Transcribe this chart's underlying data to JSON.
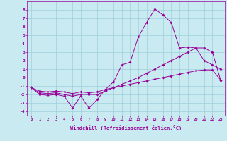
{
  "xlabel": "Windchill (Refroidissement éolien,°C)",
  "x_ticks": [
    0,
    1,
    2,
    3,
    4,
    5,
    6,
    7,
    8,
    9,
    10,
    11,
    12,
    13,
    14,
    15,
    16,
    17,
    18,
    19,
    20,
    21,
    22,
    23
  ],
  "ylim": [
    -4.5,
    9.0
  ],
  "xlim": [
    -0.5,
    23.5
  ],
  "yticks": [
    -4,
    -3,
    -2,
    -1,
    0,
    1,
    2,
    3,
    4,
    5,
    6,
    7,
    8
  ],
  "background_color": "#c8eaf0",
  "line_color": "#990099",
  "line1_jagged": {
    "x": [
      0,
      1,
      2,
      3,
      4,
      5,
      6,
      7,
      8,
      9,
      10,
      11,
      12,
      13,
      14,
      15,
      16,
      17,
      18,
      19,
      20,
      21,
      22,
      23
    ],
    "y": [
      -1.2,
      -2.0,
      -2.1,
      -2.0,
      -2.2,
      -3.6,
      -2.2,
      -3.6,
      -2.6,
      -1.4,
      -0.5,
      1.5,
      1.8,
      4.8,
      6.5,
      8.1,
      7.4,
      6.5,
      3.5,
      3.6,
      3.5,
      2.0,
      1.5,
      1.0
    ]
  },
  "line2_mid": {
    "x": [
      0,
      1,
      2,
      3,
      4,
      5,
      6,
      7,
      8,
      9,
      10,
      11,
      12,
      13,
      14,
      15,
      16,
      17,
      18,
      19,
      20,
      21,
      22,
      23
    ],
    "y": [
      -1.2,
      -1.8,
      -1.9,
      -1.8,
      -2.0,
      -2.2,
      -2.0,
      -2.0,
      -2.0,
      -1.6,
      -1.2,
      -0.8,
      -0.4,
      0.0,
      0.5,
      1.0,
      1.5,
      2.0,
      2.5,
      3.0,
      3.5,
      3.5,
      3.0,
      -0.3
    ]
  },
  "line3_smooth": {
    "x": [
      0,
      1,
      2,
      3,
      4,
      5,
      6,
      7,
      8,
      9,
      10,
      11,
      12,
      13,
      14,
      15,
      16,
      17,
      18,
      19,
      20,
      21,
      22,
      23
    ],
    "y": [
      -1.2,
      -1.6,
      -1.7,
      -1.6,
      -1.7,
      -1.9,
      -1.7,
      -1.8,
      -1.7,
      -1.4,
      -1.2,
      -1.0,
      -0.8,
      -0.6,
      -0.4,
      -0.2,
      0.0,
      0.2,
      0.4,
      0.6,
      0.8,
      0.9,
      0.9,
      -0.3
    ]
  }
}
